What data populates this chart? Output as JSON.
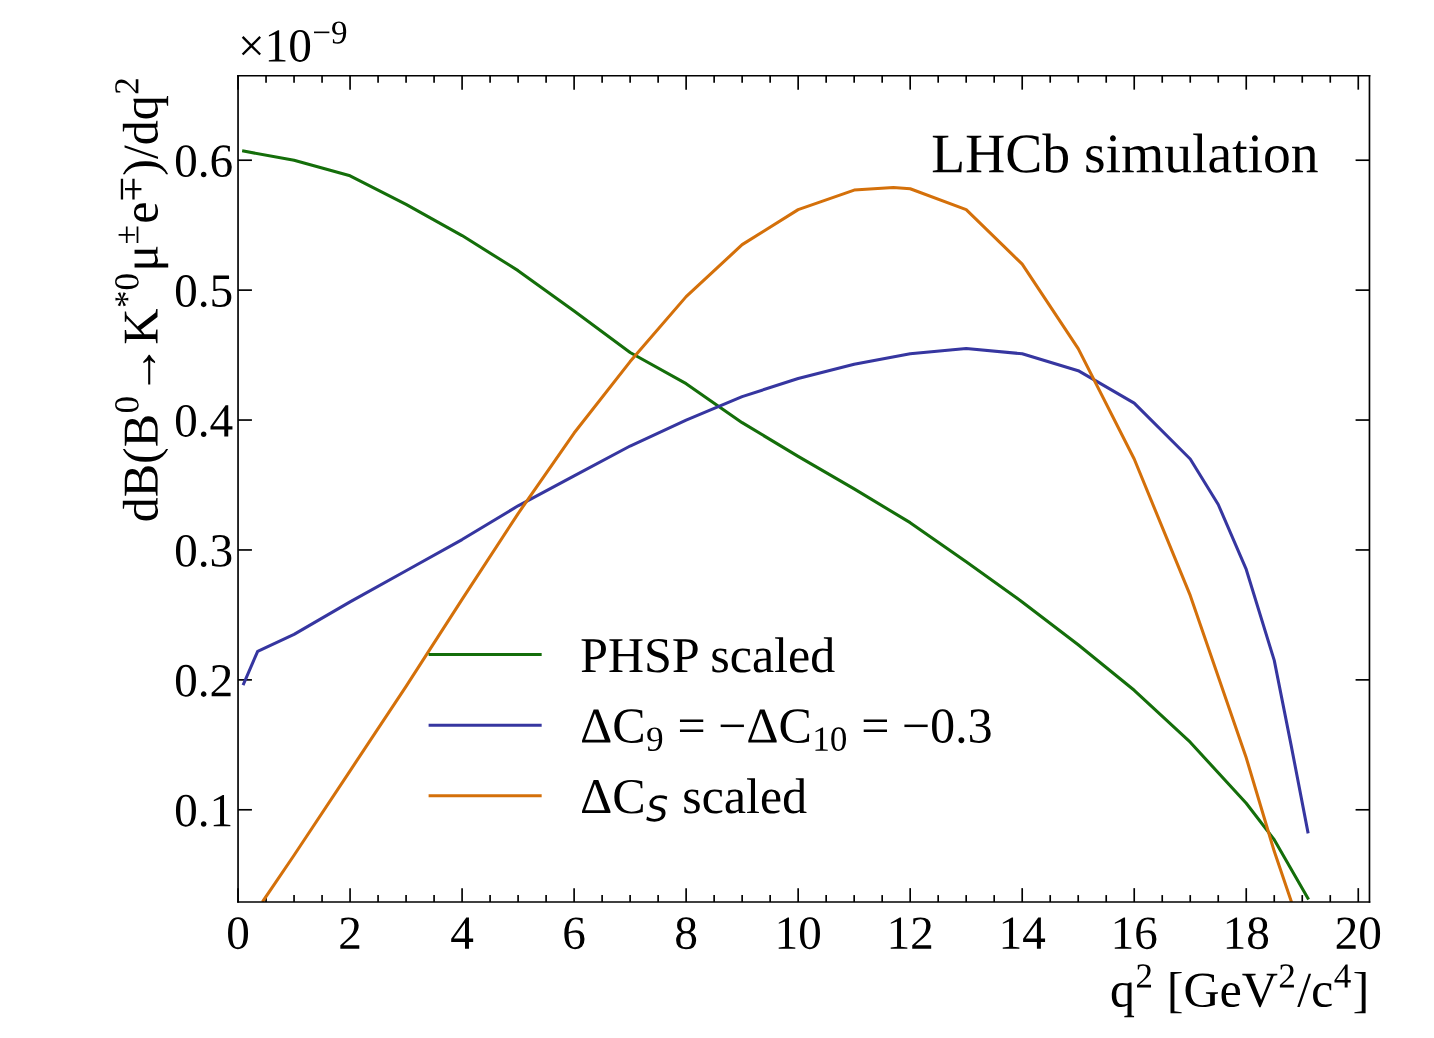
{
  "chart_data": {
    "type": "line",
    "xlabel": "q$^{2}$ [GeV$^{2}$/c$^{4}$]",
    "ylabel": "dB(B$^{0}$→K$^{*0}$μ$^{±}$e$^{∓}$)/dq$^{2}$",
    "annotations": [
      "×10$^{−9}$",
      "LHCb simulation"
    ],
    "xlim": [
      0,
      20.2
    ],
    "xticks": [
      0,
      2,
      4,
      6,
      8,
      10,
      12,
      14,
      16,
      18,
      20
    ],
    "ylim": [
      0.029,
      0.665
    ],
    "yticks": [
      0.1,
      0.2,
      0.3,
      0.4,
      0.5,
      0.6
    ],
    "grid": false,
    "legend": "bottom left",
    "marker": "none",
    "line_style": "solid",
    "series": [
      {
        "name": "PHSP scaled",
        "color": "#146e0a",
        "x": [
          0.1,
          1,
          2,
          3,
          4,
          5,
          6,
          7,
          8,
          9,
          10,
          11,
          12,
          13,
          14,
          15,
          16,
          17,
          18,
          18.5,
          19.1
        ],
        "values": [
          0.607,
          0.6,
          0.588,
          0.566,
          0.542,
          0.515,
          0.484,
          0.452,
          0.428,
          0.398,
          0.372,
          0.347,
          0.321,
          0.291,
          0.26,
          0.227,
          0.192,
          0.152,
          0.105,
          0.077,
          0.032
        ]
      },
      {
        "name": "ΔC$_{9}$ = −ΔC$_{10}$ = −0.3",
        "color": "#3636a0",
        "x": [
          0.1,
          0.35,
          1,
          2,
          3,
          4,
          5,
          6,
          7,
          8,
          9,
          10,
          11,
          12,
          13,
          14,
          15,
          16,
          17,
          17.5,
          18,
          18.5,
          18.8,
          19.1
        ],
        "values": [
          0.197,
          0.222,
          0.235,
          0.26,
          0.284,
          0.308,
          0.334,
          0.357,
          0.38,
          0.4,
          0.418,
          0.432,
          0.443,
          0.451,
          0.455,
          0.451,
          0.438,
          0.413,
          0.37,
          0.335,
          0.285,
          0.215,
          0.15,
          0.083
        ]
      },
      {
        "name": "ΔC$_{S}$ scaled",
        "color": "#d4700a",
        "x": [
          0.45,
          1,
          2,
          3,
          4,
          5,
          6,
          7,
          8,
          9,
          10,
          11,
          11.7,
          12,
          13,
          14,
          15,
          16,
          17,
          18,
          18.5,
          18.8
        ],
        "values": [
          0.03,
          0.065,
          0.13,
          0.195,
          0.262,
          0.328,
          0.39,
          0.445,
          0.495,
          0.535,
          0.562,
          0.577,
          0.579,
          0.578,
          0.562,
          0.52,
          0.455,
          0.37,
          0.265,
          0.14,
          0.068,
          0.03
        ]
      }
    ]
  }
}
